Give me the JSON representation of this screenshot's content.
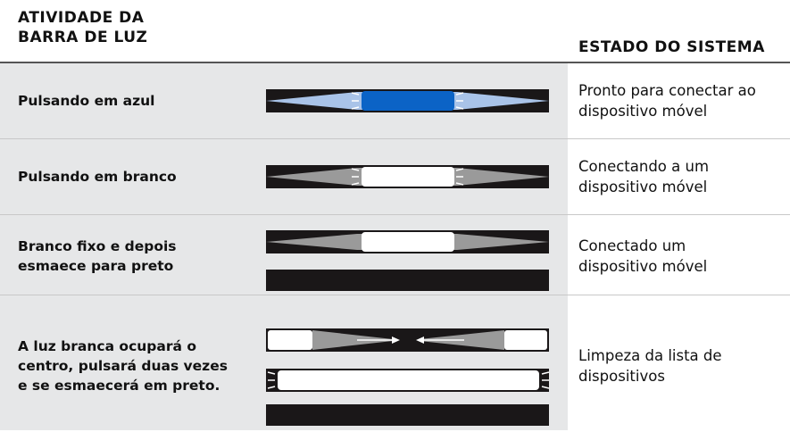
{
  "header": {
    "activity_title": [
      "ATIVIDADE DA",
      "BARRA DE LUZ"
    ],
    "state_title": [
      "ESTADO DO SISTEMA"
    ]
  },
  "table": {
    "rows": [
      {
        "activity": [
          "Pulsando em azul"
        ],
        "state": [
          "Pronto para conectar ao",
          "dispositivo móvel"
        ]
      },
      {
        "activity": [
          "Pulsando em branco"
        ],
        "state": [
          "Conectando a um",
          "dispositivo móvel"
        ]
      },
      {
        "activity": [
          "Branco fixo e depois",
          "esmaece para preto"
        ],
        "state": [
          "Conectado um",
          "dispositivo móvel"
        ]
      },
      {
        "activity": [
          "A luz branca ocupará o",
          "centro, pulsará duas vezes",
          "e se esmaecerá em preto."
        ],
        "state": [
          "Limpeza da lista de",
          "dispositivos"
        ]
      }
    ]
  }
}
